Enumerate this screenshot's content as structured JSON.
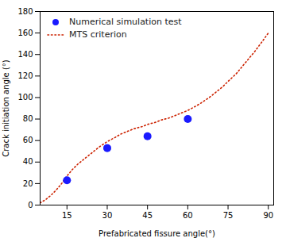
{
  "chart_data": {
    "type": "scatter",
    "xlabel": "Prefabricated fissure angle(°)",
    "ylabel": "Crack initiation angle (°)",
    "series": [
      {
        "name": "Numerical simulation test",
        "type": "scatter",
        "color": "#1a1aff",
        "marker": "circle",
        "x": [
          15,
          30,
          45,
          60
        ],
        "values": [
          23,
          53,
          64,
          80
        ]
      },
      {
        "name": "MTS criterion",
        "type": "line",
        "color": "#cc2200",
        "line_style": "dotted",
        "x": [
          5,
          7,
          9,
          11,
          13,
          15,
          17,
          19,
          21,
          23,
          25,
          27,
          30,
          33,
          35,
          38,
          40,
          43,
          45,
          48,
          50,
          53,
          55,
          58,
          60,
          63,
          65,
          68,
          70,
          73,
          75,
          78,
          80,
          83,
          85,
          88,
          90
        ],
        "values": [
          2,
          5,
          9,
          14,
          20,
          27,
          33,
          38,
          42,
          46,
          50,
          54,
          59,
          63,
          66,
          69,
          71,
          73,
          75,
          77,
          79,
          81,
          83,
          86,
          88,
          92,
          95,
          100,
          104,
          110,
          115,
          122,
          128,
          137,
          143,
          153,
          160
        ]
      }
    ],
    "xlim": [
      5,
      92
    ],
    "ylim": [
      0,
      180
    ],
    "xticks": [
      15,
      30,
      45,
      60,
      75,
      90
    ],
    "yticks": [
      0,
      20,
      40,
      60,
      80,
      100,
      120,
      140,
      160,
      180
    ],
    "legend": "upper left",
    "grid": false
  }
}
